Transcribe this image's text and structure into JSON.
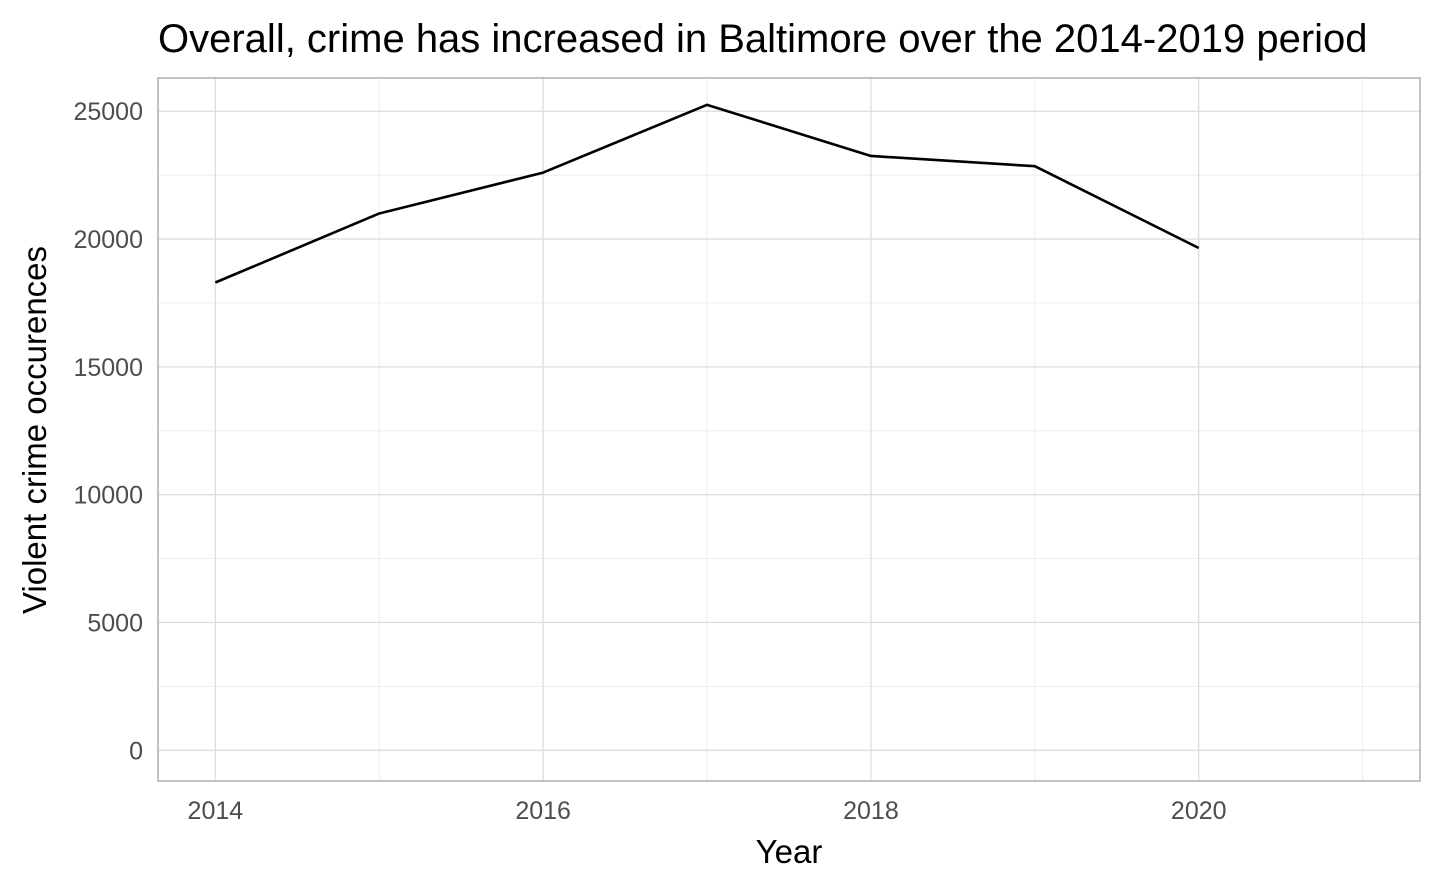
{
  "chart_data": {
    "type": "line",
    "title": "Overall, crime has increased in Baltimore over the 2014-2019 period",
    "xlabel": "Year",
    "ylabel": "Violent crime occurences",
    "x": [
      2014,
      2015,
      2016,
      2017,
      2018,
      2019,
      2020
    ],
    "series": [
      {
        "values": [
          18300,
          21000,
          22600,
          25250,
          23250,
          22850,
          19650
        ]
      }
    ],
    "xlim": [
      2013.65,
      2021.35
    ],
    "ylim": [
      -1200,
      26300
    ],
    "x_ticks": [
      2014,
      2016,
      2018,
      2020
    ],
    "x_tick_labels": [
      "2014",
      "2016",
      "2018",
      "2020"
    ],
    "y_ticks": [
      0,
      5000,
      10000,
      15000,
      20000,
      25000
    ],
    "y_tick_labels": [
      "0",
      "5000",
      "10000",
      "15000",
      "20000",
      "25000"
    ],
    "grid": true,
    "line_color": "#000000"
  }
}
